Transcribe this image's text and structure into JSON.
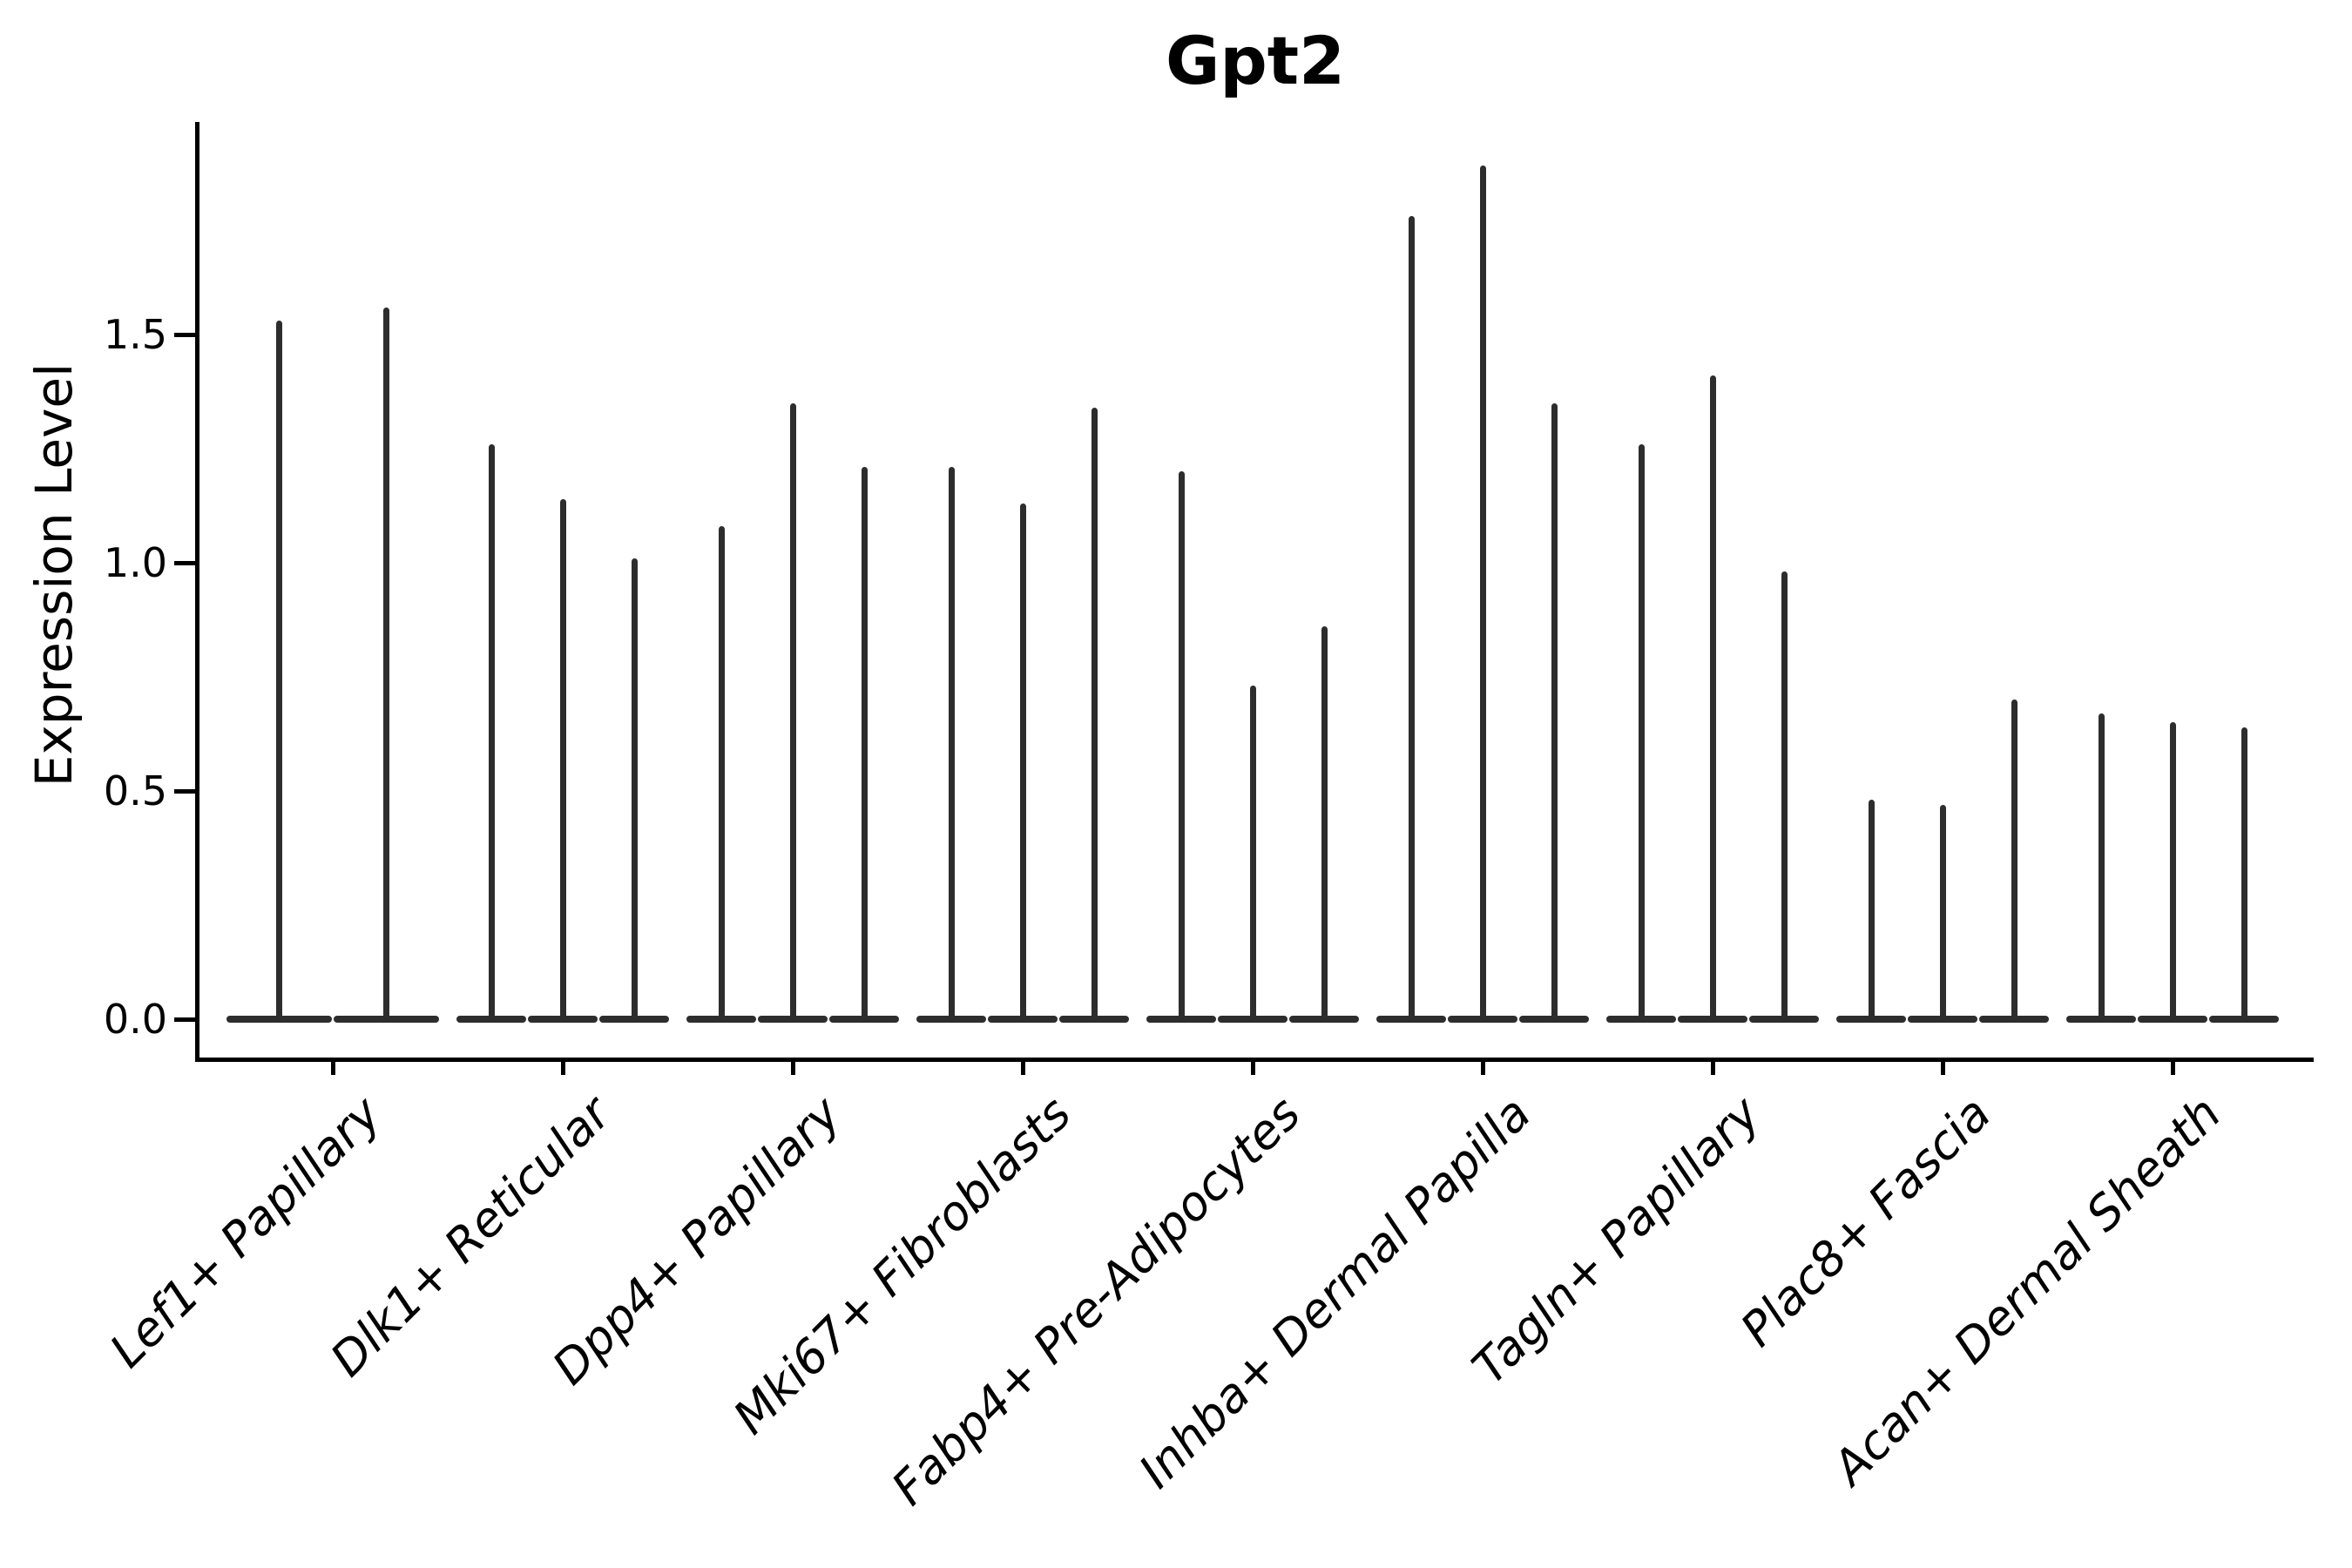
{
  "figure": {
    "title": "Gpt2",
    "y_axis": {
      "label": "Expression Level",
      "tick_labels": [
        "0.0",
        "0.5",
        "1.0",
        "1.5"
      ],
      "tick_values": [
        0,
        0.5,
        1.0,
        1.5
      ]
    },
    "colors": {
      "background": "#ffffff",
      "axis": "#000000",
      "text": "#000000",
      "violin": "#2d2d2d"
    }
  },
  "chart_data": {
    "type": "violin",
    "title": "Gpt2",
    "xlabel": "",
    "ylabel": "Expression Level",
    "ylim": [
      -0.09,
      1.97
    ],
    "yticks": [
      0,
      0.5,
      1.0,
      1.5
    ],
    "grid": false,
    "legend": "none",
    "style_note": "Single-cell expression violin plot; each violin is a thin dark spike: density mass concentrated at 0 (wide flat base) with a narrow tail reaching the listed maximum expression value. Groups hold 2-3 violins drawn side by side.",
    "categories": [
      "Lef1+ Papillary",
      "Dlk1+ Reticular",
      "Dpp4+ Papillary",
      "Mki67+ Fibroblasts",
      "Fabp4+ Pre-Adipocytes",
      "Inhba+ Dermal Papilla",
      "Tagln+ Papillary",
      "Plac8+ Fascia",
      "Acan+ Dermal Sheath"
    ],
    "violin_maxima_per_category": [
      [
        1.53,
        1.56
      ],
      [
        1.26,
        1.14,
        1.01
      ],
      [
        1.08,
        1.35,
        1.21
      ],
      [
        1.21,
        1.13,
        1.34
      ],
      [
        1.2,
        0.73,
        0.86
      ],
      [
        1.76,
        1.87,
        1.35
      ],
      [
        1.26,
        1.41,
        0.98
      ],
      [
        0.48,
        0.47,
        0.7
      ],
      [
        0.67,
        0.65,
        0.64
      ]
    ]
  }
}
